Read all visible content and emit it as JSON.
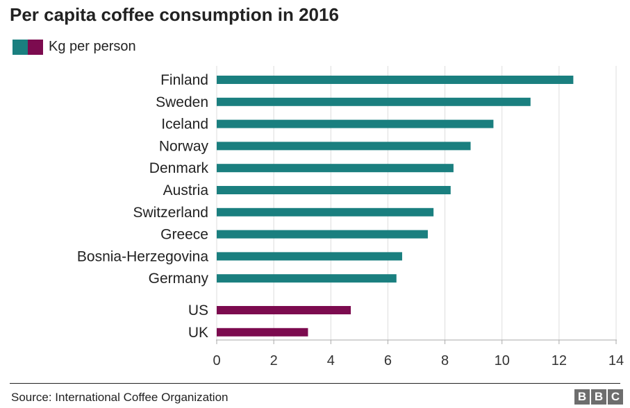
{
  "chart_data": {
    "type": "bar",
    "orientation": "horizontal",
    "title": "Per capita coffee consumption in 2016",
    "legend": [
      {
        "label": "Kg per person",
        "colors": [
          "#1a7f7f",
          "#7c0b4f"
        ]
      }
    ],
    "groups": [
      {
        "color": "#1a7f7f",
        "categories": [
          "Finland",
          "Sweden",
          "Iceland",
          "Norway",
          "Denmark",
          "Austria",
          "Switzerland",
          "Greece",
          "Bosnia-Herzegovina",
          "Germany"
        ],
        "values": [
          12.5,
          11.0,
          9.7,
          8.9,
          8.3,
          8.2,
          7.6,
          7.4,
          6.5,
          6.3
        ]
      },
      {
        "color": "#7c0b4f",
        "categories": [
          "US",
          "UK"
        ],
        "values": [
          4.7,
          3.2
        ]
      }
    ],
    "xlim": [
      0,
      14
    ],
    "xticks": [
      "0",
      "2",
      "4",
      "6",
      "8",
      "10",
      "12",
      "14"
    ],
    "grid": "vertical",
    "source": "Source: International Coffee Organization"
  },
  "branding": {
    "letters": [
      "B",
      "B",
      "C"
    ]
  }
}
